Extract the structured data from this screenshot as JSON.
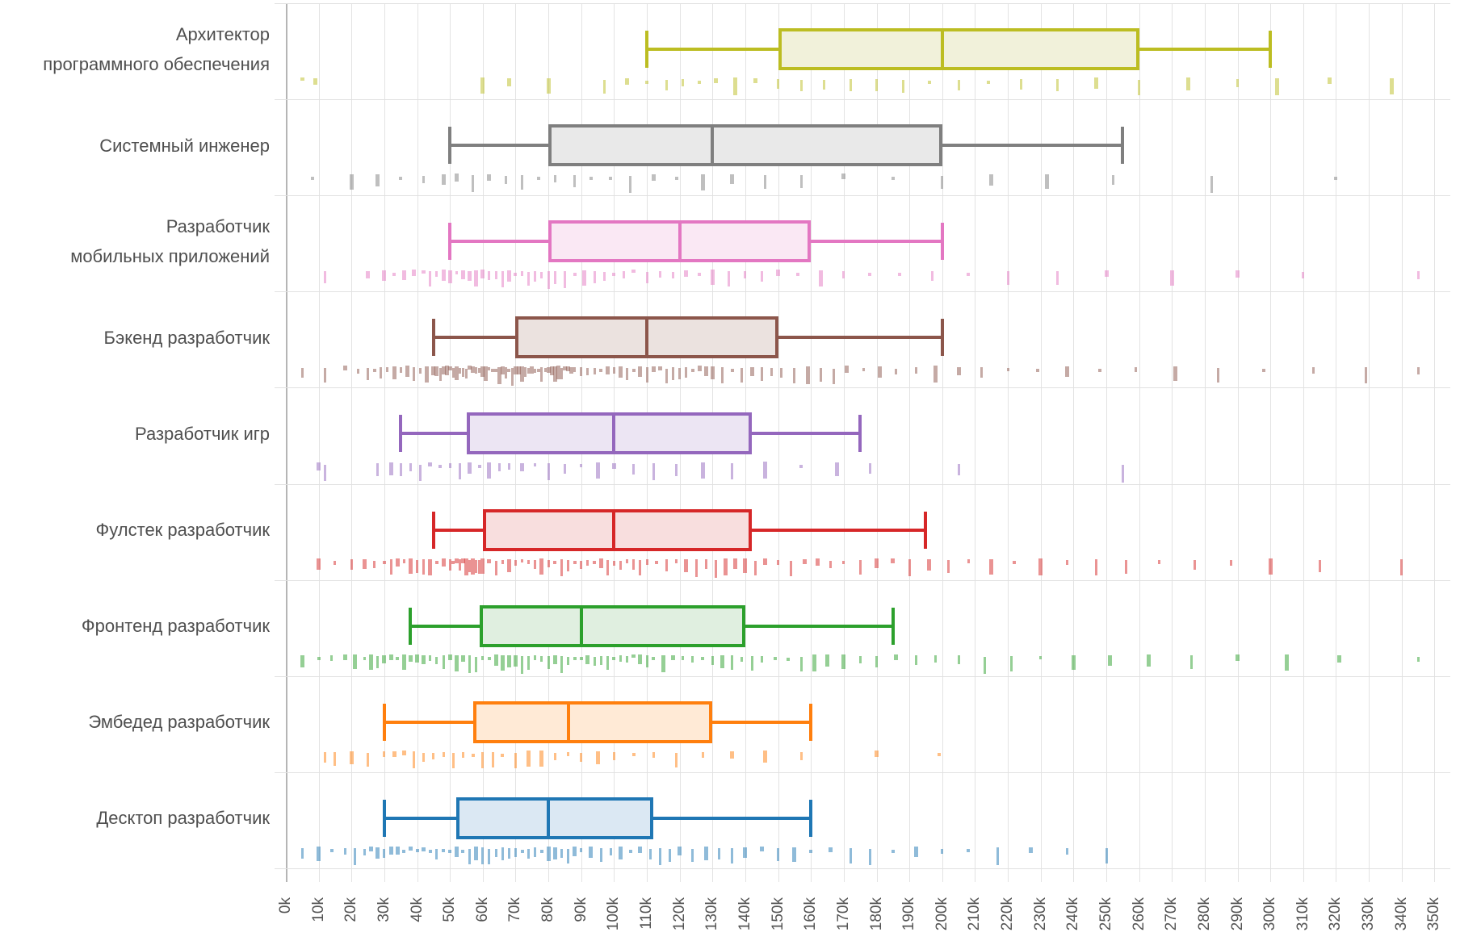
{
  "chart_data": {
    "type": "boxplot",
    "orientation": "horizontal",
    "title": "",
    "x_axis": {
      "unit": "k",
      "min_k": 0,
      "max_k": 350,
      "tick_step_k": 10,
      "tick_labels": [
        "0k",
        "10k",
        "20k",
        "30k",
        "40k",
        "50k",
        "60k",
        "70k",
        "80k",
        "90k",
        "100k",
        "110k",
        "120k",
        "130k",
        "140k",
        "150k",
        "160k",
        "170k",
        "180k",
        "190k",
        "200k",
        "210k",
        "220k",
        "230k",
        "240k",
        "250k",
        "260k",
        "270k",
        "280k",
        "290k",
        "300k",
        "310k",
        "320k",
        "330k",
        "340k",
        "350k"
      ]
    },
    "grid": true,
    "legend": "none",
    "categories": [
      {
        "key": "software-architect",
        "label_lines": [
          "Архитектор",
          "программного обеспечения"
        ],
        "color": "#bcbd22",
        "fill": "#f1f1da",
        "stats_k": {
          "min": 110,
          "q1": 150,
          "median": 200,
          "q3": 260,
          "max": 300
        },
        "points_k": [
          5,
          9,
          60,
          68,
          80,
          97,
          104,
          110,
          116,
          121,
          126,
          131,
          137,
          143,
          150,
          157,
          164,
          172,
          180,
          188,
          196,
          205,
          214,
          224,
          235,
          247,
          260,
          275,
          290,
          302,
          318,
          337
        ]
      },
      {
        "key": "system-engineer",
        "label_lines": [
          "Системный инженер"
        ],
        "color": "#7f7f7f",
        "fill": "#e9e9e9",
        "stats_k": {
          "min": 50,
          "q1": 80,
          "median": 130,
          "q3": 200,
          "max": 255
        },
        "points_k": [
          8,
          20,
          28,
          35,
          42,
          48,
          52,
          57,
          62,
          67,
          72,
          77,
          82,
          88,
          93,
          99,
          105,
          112,
          119,
          127,
          136,
          146,
          157,
          170,
          185,
          200,
          215,
          232,
          252,
          282,
          320
        ]
      },
      {
        "key": "mobile-developer",
        "label_lines": [
          "Разработчик",
          "мобильных приложений"
        ],
        "color": "#e377c2",
        "fill": "#fae8f4",
        "stats_k": {
          "min": 50,
          "q1": 80,
          "median": 120,
          "q3": 160,
          "max": 200
        },
        "points_k": [
          12,
          25,
          30,
          33,
          36,
          39,
          42,
          44,
          46,
          48,
          50,
          52,
          54,
          56,
          58,
          60,
          62,
          64,
          66,
          68,
          70,
          72,
          74,
          76,
          78,
          80,
          82,
          85,
          88,
          91,
          94,
          97,
          100,
          103,
          106,
          110,
          114,
          118,
          122,
          126,
          130,
          135,
          140,
          145,
          150,
          156,
          163,
          170,
          178,
          187,
          197,
          208,
          220,
          235,
          250,
          270,
          290,
          310,
          345
        ]
      },
      {
        "key": "backend-developer",
        "label_lines": [
          "Бэкенд разработчик"
        ],
        "color": "#8c564b",
        "fill": "#ebe2df",
        "stats_k": {
          "min": 45,
          "q1": 70,
          "median": 110,
          "q3": 150,
          "max": 200
        },
        "points_k": [
          5,
          12,
          18,
          22,
          25,
          27,
          29,
          31,
          33,
          35,
          37,
          39,
          41,
          43,
          45,
          46,
          47,
          48,
          49,
          50,
          51,
          52,
          53,
          54,
          55,
          56,
          57,
          58,
          59,
          60,
          61,
          62,
          63,
          64,
          65,
          66,
          67,
          68,
          69,
          70,
          71,
          72,
          73,
          74,
          75,
          76,
          77,
          78,
          79,
          80,
          81,
          82,
          83,
          84,
          85,
          86,
          87,
          88,
          90,
          92,
          94,
          96,
          98,
          100,
          102,
          104,
          106,
          108,
          110,
          112,
          114,
          116,
          118,
          120,
          122,
          124,
          126,
          128,
          130,
          133,
          136,
          139,
          142,
          145,
          148,
          151,
          155,
          159,
          163,
          167,
          171,
          176,
          181,
          186,
          192,
          198,
          205,
          212,
          220,
          229,
          238,
          248,
          259,
          271,
          284,
          298,
          313,
          329,
          345
        ]
      },
      {
        "key": "game-developer",
        "label_lines": [
          "Разработчик игр"
        ],
        "color": "#9467bd",
        "fill": "#ece5f3",
        "stats_k": {
          "min": 35,
          "q1": 55,
          "median": 100,
          "q3": 142,
          "max": 175
        },
        "points_k": [
          10,
          12,
          28,
          32,
          35,
          38,
          41,
          44,
          47,
          50,
          53,
          56,
          59,
          62,
          65,
          68,
          72,
          76,
          80,
          85,
          90,
          95,
          100,
          106,
          112,
          119,
          127,
          136,
          146,
          157,
          168,
          178,
          205,
          255
        ]
      },
      {
        "key": "fullstack-developer",
        "label_lines": [
          "Фулстек разработчик"
        ],
        "color": "#d62728",
        "fill": "#f8dede",
        "stats_k": {
          "min": 45,
          "q1": 60,
          "median": 100,
          "q3": 142,
          "max": 195
        },
        "points_k": [
          10,
          15,
          20,
          24,
          27,
          30,
          32,
          34,
          36,
          38,
          40,
          42,
          44,
          46,
          48,
          50,
          51,
          52,
          53,
          54,
          55,
          56,
          57,
          58,
          59,
          60,
          62,
          64,
          66,
          68,
          70,
          72,
          74,
          76,
          78,
          80,
          82,
          84,
          86,
          88,
          90,
          92,
          94,
          96,
          98,
          100,
          102,
          104,
          106,
          108,
          110,
          113,
          116,
          119,
          122,
          125,
          128,
          131,
          134,
          137,
          140,
          143,
          146,
          150,
          154,
          158,
          162,
          166,
          170,
          175,
          180,
          185,
          190,
          196,
          202,
          208,
          215,
          222,
          230,
          238,
          247,
          256,
          266,
          277,
          288,
          300,
          315,
          340
        ]
      },
      {
        "key": "frontend-developer",
        "label_lines": [
          "Фронтенд разработчик"
        ],
        "color": "#2ca02c",
        "fill": "#e0efe0",
        "stats_k": {
          "min": 38,
          "q1": 59,
          "median": 90,
          "q3": 140,
          "max": 185
        },
        "points_k": [
          5,
          10,
          14,
          18,
          21,
          24,
          26,
          28,
          30,
          32,
          34,
          36,
          38,
          40,
          42,
          44,
          46,
          48,
          50,
          52,
          54,
          56,
          58,
          60,
          62,
          64,
          66,
          68,
          70,
          72,
          74,
          76,
          78,
          80,
          82,
          84,
          86,
          88,
          90,
          92,
          94,
          96,
          98,
          100,
          102,
          104,
          106,
          108,
          110,
          112,
          115,
          118,
          121,
          124,
          127,
          130,
          133,
          136,
          139,
          142,
          145,
          149,
          153,
          157,
          161,
          165,
          170,
          175,
          180,
          186,
          192,
          198,
          205,
          213,
          221,
          230,
          240,
          251,
          263,
          276,
          290,
          305,
          321,
          345
        ]
      },
      {
        "key": "embedded-developer",
        "label_lines": [
          "Эмбедед разработчик"
        ],
        "color": "#ff7f0e",
        "fill": "#ffead6",
        "stats_k": {
          "min": 30,
          "q1": 57,
          "median": 86,
          "q3": 130,
          "max": 160
        },
        "points_k": [
          12,
          15,
          20,
          25,
          30,
          33,
          36,
          39,
          42,
          45,
          48,
          51,
          54,
          57,
          60,
          63,
          66,
          70,
          74,
          78,
          82,
          86,
          90,
          95,
          100,
          106,
          112,
          119,
          127,
          136,
          146,
          157,
          180,
          199
        ]
      },
      {
        "key": "desktop-developer",
        "label_lines": [
          "Десктоп разработчик"
        ],
        "color": "#1f77b4",
        "fill": "#dbe8f3",
        "stats_k": {
          "min": 30,
          "q1": 52,
          "median": 80,
          "q3": 112,
          "max": 160
        },
        "points_k": [
          5,
          10,
          14,
          18,
          21,
          24,
          26,
          28,
          30,
          32,
          34,
          36,
          38,
          40,
          42,
          44,
          46,
          48,
          50,
          52,
          54,
          56,
          58,
          60,
          62,
          64,
          66,
          68,
          70,
          72,
          74,
          76,
          78,
          80,
          82,
          84,
          86,
          88,
          90,
          93,
          96,
          99,
          102,
          105,
          108,
          111,
          114,
          117,
          120,
          124,
          128,
          132,
          136,
          140,
          145,
          150,
          155,
          160,
          166,
          172,
          178,
          185,
          192,
          200,
          208,
          217,
          227,
          238,
          250
        ]
      }
    ]
  }
}
